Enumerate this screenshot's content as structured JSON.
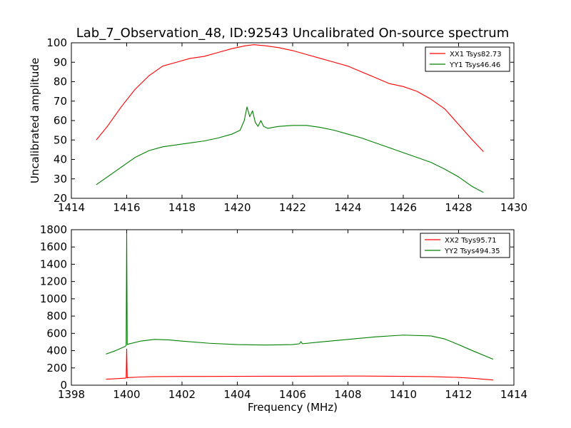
{
  "chart_data": [
    {
      "type": "line",
      "title": "Lab_7_Observation_48, ID:92543 Uncalibrated On-source spectrum",
      "xlabel": "",
      "ylabel": "Uncalibrated amplitude",
      "xlim": [
        1414,
        1430
      ],
      "ylim": [
        20,
        100
      ],
      "xticks": [
        "1414",
        "1416",
        "1418",
        "1420",
        "1422",
        "1424",
        "1426",
        "1428",
        "1430"
      ],
      "yticks": [
        "20",
        "30",
        "40",
        "50",
        "60",
        "70",
        "80",
        "90",
        "100"
      ],
      "legend_position": "top-right",
      "series": [
        {
          "name": "XX1 Tsys82.73",
          "color": "#ff0000",
          "x": [
            1414.9,
            1415.3,
            1415.8,
            1416.3,
            1416.8,
            1417.3,
            1417.8,
            1418.3,
            1418.8,
            1419.3,
            1419.8,
            1420.3,
            1420.6,
            1421.0,
            1421.5,
            1422.0,
            1422.5,
            1423.0,
            1423.5,
            1424.0,
            1424.5,
            1425.0,
            1425.5,
            1426.0,
            1426.5,
            1427.0,
            1427.5,
            1428.0,
            1428.5,
            1428.9
          ],
          "y": [
            50,
            57,
            67,
            76,
            83,
            88,
            90,
            92,
            93,
            95,
            97,
            98.5,
            99,
            98.5,
            97.5,
            96,
            94,
            92,
            90,
            88,
            85,
            82,
            79,
            77.5,
            75,
            71,
            66,
            58,
            50,
            44
          ]
        },
        {
          "name": "YY1 Tsys46.46",
          "color": "#008000",
          "x": [
            1414.9,
            1415.3,
            1415.8,
            1416.3,
            1416.8,
            1417.3,
            1417.8,
            1418.3,
            1418.8,
            1419.3,
            1419.8,
            1420.1,
            1420.25,
            1420.35,
            1420.45,
            1420.55,
            1420.65,
            1420.75,
            1420.85,
            1420.95,
            1421.1,
            1421.5,
            1422.0,
            1422.5,
            1423.0,
            1423.5,
            1424.0,
            1424.5,
            1425.0,
            1425.5,
            1426.0,
            1426.5,
            1427.0,
            1427.5,
            1428.0,
            1428.5,
            1428.9
          ],
          "y": [
            27,
            31,
            36,
            41,
            44.5,
            46.5,
            47.5,
            48.5,
            49.5,
            51,
            53,
            55,
            60,
            67,
            62,
            65,
            59,
            57,
            60,
            57,
            56,
            57,
            57.5,
            57.5,
            56.5,
            55,
            53,
            51,
            48.5,
            46,
            43.5,
            41,
            38.5,
            35,
            31,
            26,
            23
          ]
        }
      ]
    },
    {
      "type": "line",
      "title": "",
      "xlabel": "Frequency (MHz)",
      "ylabel": "",
      "xlim": [
        1398,
        1414
      ],
      "ylim": [
        0,
        1800
      ],
      "xticks": [
        "1398",
        "1400",
        "1402",
        "1404",
        "1406",
        "1408",
        "1410",
        "1412",
        "1414"
      ],
      "yticks": [
        "0",
        "200",
        "400",
        "600",
        "800",
        "1000",
        "1200",
        "1400",
        "1600",
        "1800"
      ],
      "legend_position": "top-right",
      "series": [
        {
          "name": "XX2 Tsys95.71",
          "color": "#ff0000",
          "x": [
            1399.25,
            1399.6,
            1399.95,
            1399.98,
            1400.0,
            1400.02,
            1400.05,
            1400.5,
            1401.0,
            1402.0,
            1403.0,
            1404.0,
            1405.0,
            1406.0,
            1407.0,
            1408.0,
            1409.0,
            1410.0,
            1411.0,
            1412.0,
            1412.5,
            1413.25
          ],
          "y": [
            70,
            75,
            82,
            85,
            420,
            85,
            88,
            95,
            100,
            102,
            102,
            103,
            104,
            104,
            105,
            106,
            105,
            103,
            100,
            90,
            80,
            60
          ]
        },
        {
          "name": "YY2 Tsys494.35",
          "color": "#008000",
          "x": [
            1399.25,
            1399.6,
            1399.95,
            1399.98,
            1400.0,
            1400.02,
            1400.05,
            1400.5,
            1401.0,
            1401.5,
            1402.0,
            1403.0,
            1404.0,
            1405.0,
            1406.0,
            1406.25,
            1406.3,
            1406.35,
            1407.0,
            1408.0,
            1409.0,
            1410.0,
            1411.0,
            1411.5,
            1412.0,
            1412.5,
            1413.25
          ],
          "y": [
            360,
            400,
            450,
            460,
            1760,
            470,
            475,
            510,
            530,
            525,
            510,
            485,
            470,
            465,
            470,
            480,
            505,
            480,
            500,
            530,
            560,
            580,
            570,
            535,
            470,
            400,
            300
          ]
        }
      ]
    }
  ]
}
